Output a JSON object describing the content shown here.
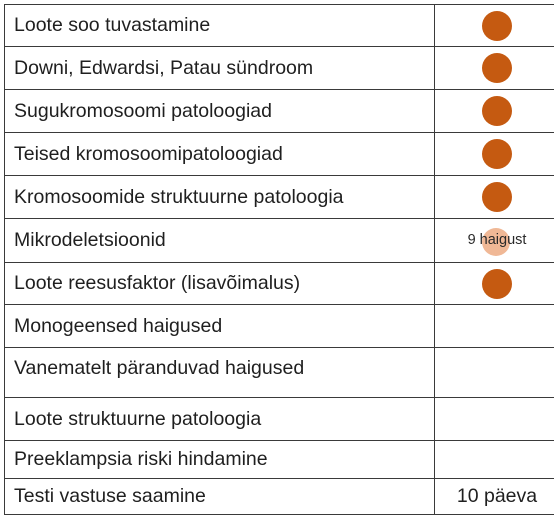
{
  "colors": {
    "dot": "#c55a11",
    "dot_light": "#f0b896",
    "border": "#3a3a3a"
  },
  "rows": [
    {
      "label": "Loote soo tuvastamine",
      "marker": "dot"
    },
    {
      "label": "Downi, Edwardsi, Patau sündroom",
      "marker": "dot"
    },
    {
      "label": "Sugukromosoomi patoloogiad",
      "marker": "dot"
    },
    {
      "label": "Teised kromosoomipatoloogiad",
      "marker": "dot"
    },
    {
      "label": "Kromosoomide struktuurne patoloogia",
      "marker": "dot"
    },
    {
      "label": "Mikrodeletsioonid",
      "marker": "light-dot",
      "value": "9 haigust"
    },
    {
      "label": "Loote reesusfaktor (lisavõimalus)",
      "marker": "dot"
    },
    {
      "label": "Monogeensed haigused",
      "marker": "none"
    },
    {
      "label": "Vanematelt päranduvad haigused",
      "marker": "none"
    },
    {
      "label": "Loote struktuurne patoloogia",
      "marker": "none"
    },
    {
      "label": "Preeklampsia riski hindamine",
      "marker": "none"
    },
    {
      "label": "Testi vastuse saamine",
      "marker": "text",
      "value": "10 päeva"
    }
  ]
}
